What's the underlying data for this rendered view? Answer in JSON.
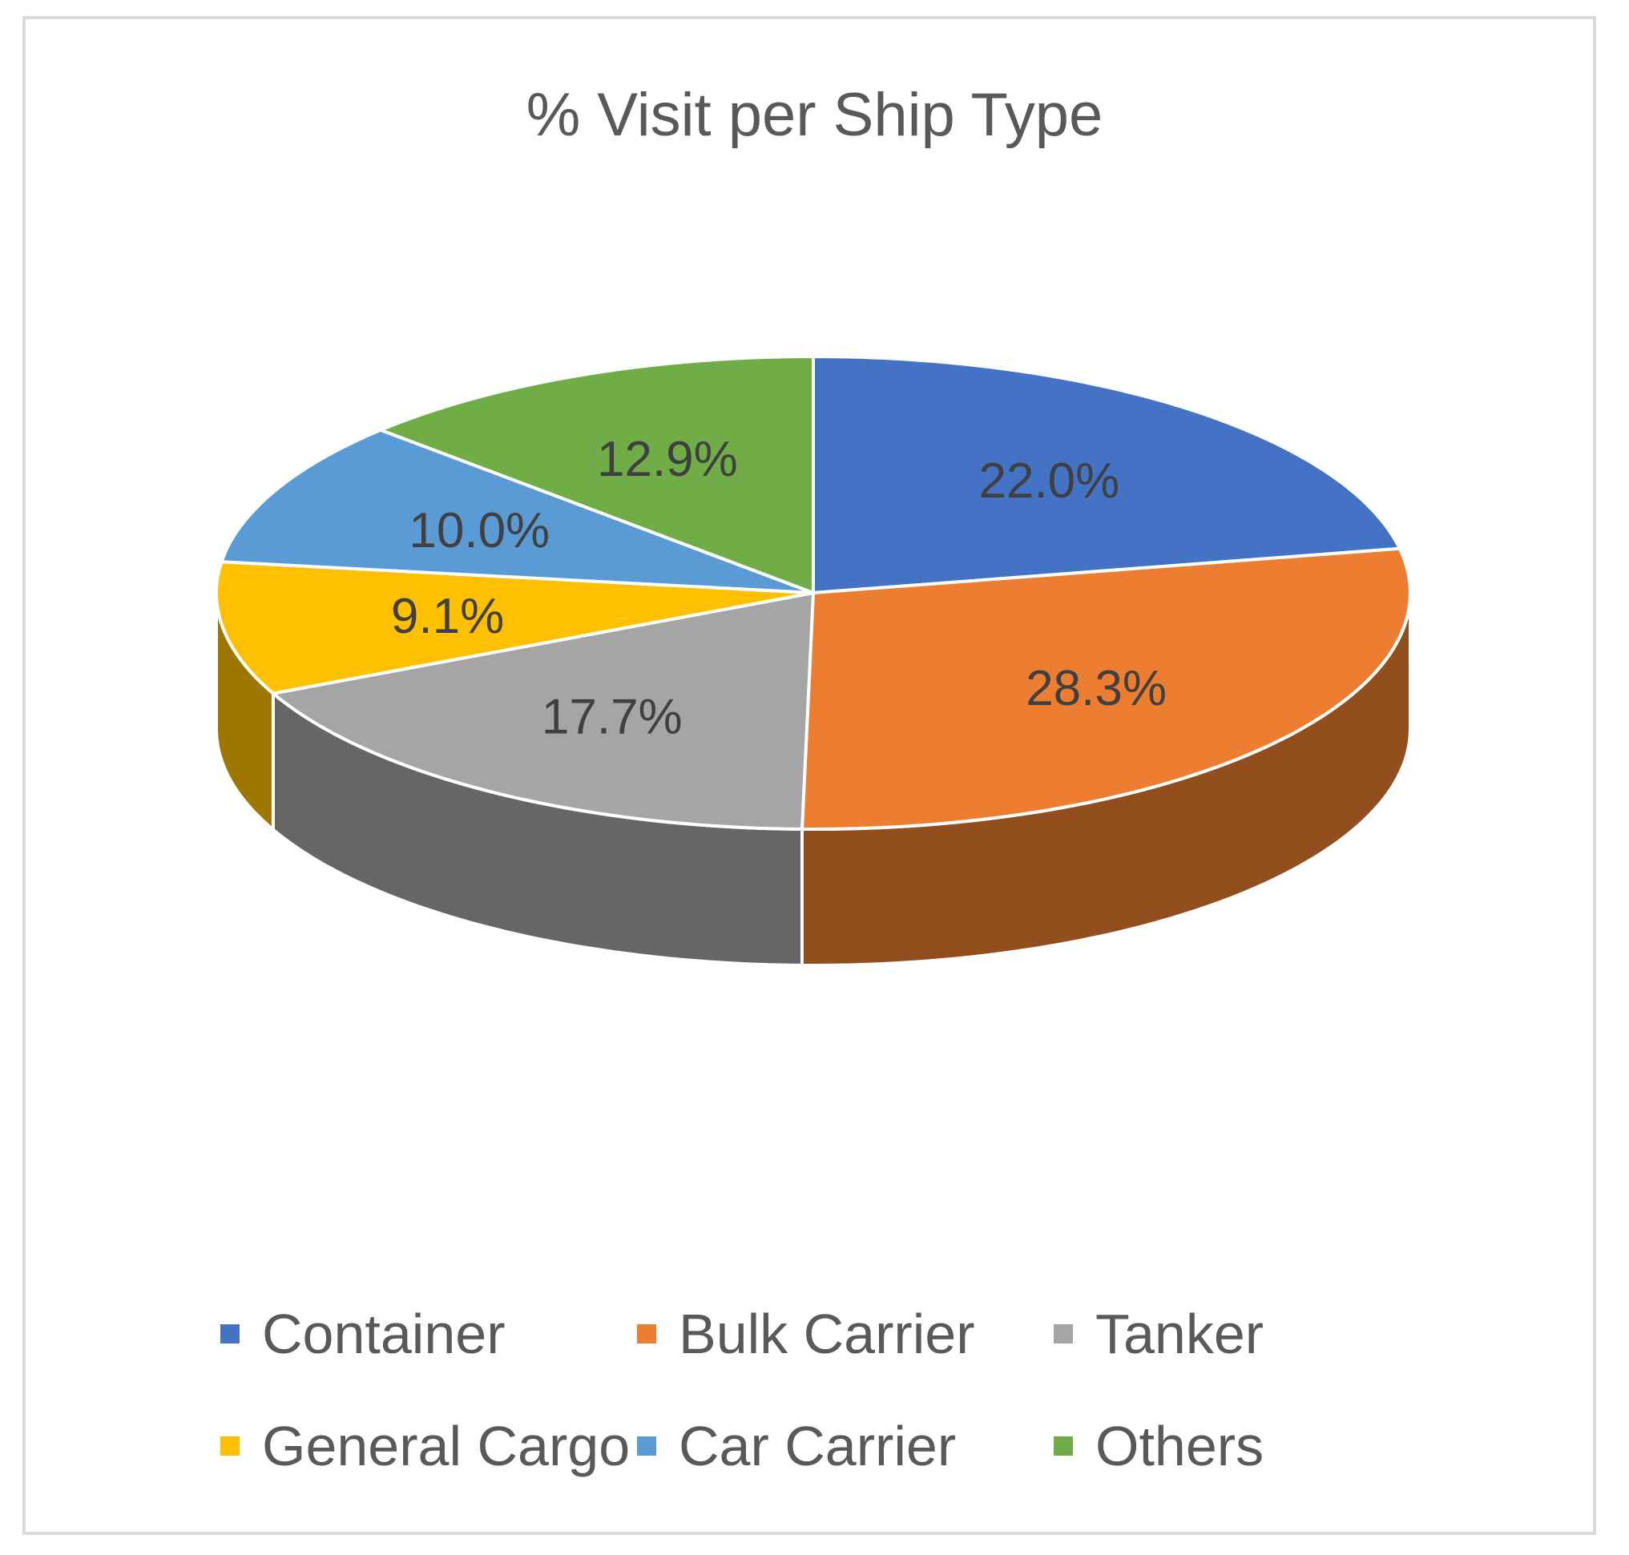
{
  "chart_data": {
    "type": "pie",
    "style": "3d",
    "title": "% Visit per Ship Type",
    "legend_position": "bottom",
    "categories": [
      "Container",
      "Bulk Carrier",
      "Tanker",
      "General Cargo",
      "Car Carrier",
      "Others"
    ],
    "values": [
      22.0,
      28.3,
      17.7,
      9.1,
      10.0,
      12.9
    ],
    "labels": [
      "22.0%",
      "28.3%",
      "17.7%",
      "9.1%",
      "10.0%",
      "12.9%"
    ],
    "colors": [
      "#4472c4",
      "#ed7d31",
      "#a5a5a5",
      "#ffc000",
      "#5b9bd5",
      "#70ad47"
    ]
  }
}
